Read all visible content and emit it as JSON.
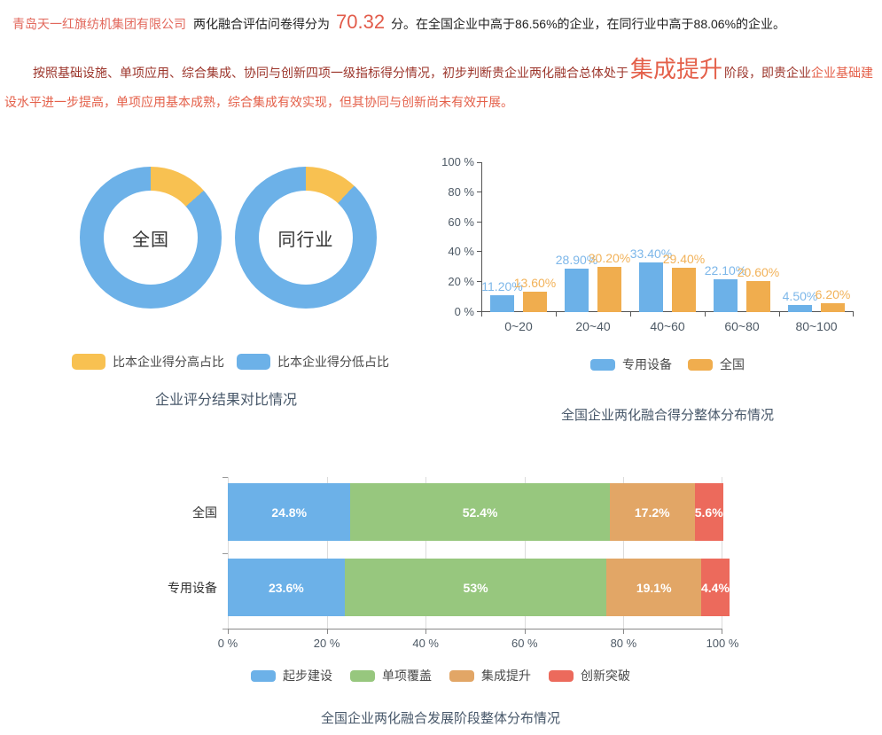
{
  "page": {
    "header": {
      "company": "青岛天一红旗纺机集团有限公司",
      "mid": "两化融合评估问卷得分为",
      "score": "70.32",
      "suffix": "分。在全国企业中高于86.56%的企业，在同行业中高于88.06%的企业。"
    },
    "analysis": {
      "part1": "按照基础设施、单项应用、综合集成、协同与创新四项一级指标得分情况，初步判断贵企业两化融合总体处于",
      "stage": "集成提升",
      "part2": "阶段，即贵企业",
      "part3": "企业基础建设水平进一步提高，单项应用基本成熟，综合集成有效实现，但其协同与创新尚未有效开展。"
    }
  },
  "colors": {
    "blue": "#6cb1e8",
    "donut_yellow": "#f8c151",
    "bar_orange": "#f0ad4e",
    "green": "#97c77e",
    "stack_orange": "#e2a666",
    "red": "#ec6a5c",
    "dark_red_text": "#9c352b",
    "salmon_text": "#e4604a",
    "title_text": "#475769",
    "axis_text": "#4e5a66"
  },
  "chart_data": [
    {
      "id": "score-compare-donuts",
      "type": "pie",
      "title": "企业评分结果对比情况",
      "donuts": [
        {
          "label": "全国",
          "higher_pct": 13.44,
          "lower_pct": 86.56
        },
        {
          "label": "同行业",
          "higher_pct": 11.94,
          "lower_pct": 88.06
        }
      ],
      "legend": [
        {
          "label": "比本企业得分高占比",
          "color": "#f8c151"
        },
        {
          "label": "比本企业得分低占比",
          "color": "#6cb1e8"
        }
      ],
      "legend_position": "bottom"
    },
    {
      "id": "score-distribution-bars",
      "type": "bar",
      "title": "全国企业两化融合得分整体分布情况",
      "categories": [
        "0~20",
        "20~40",
        "40~60",
        "60~80",
        "80~100"
      ],
      "series": [
        {
          "name": "专用设备",
          "color": "#6cb1e8",
          "label_color": "#7db7e9",
          "values": [
            11.2,
            28.9,
            33.4,
            22.1,
            4.5
          ],
          "labels": [
            "11.20%",
            "28.90%",
            "33.40%",
            "22.10%",
            "4.50%"
          ]
        },
        {
          "name": "全国",
          "color": "#f0ad4e",
          "label_color": "#f2b259",
          "values": [
            13.6,
            30.2,
            29.4,
            20.6,
            6.2
          ],
          "labels": [
            "13.60%",
            "30.20%",
            "29.40%",
            "20.60%",
            "6.20%"
          ]
        }
      ],
      "ylim": [
        0,
        100
      ],
      "yticks": [
        "0 %",
        "20 %",
        "40 %",
        "60 %",
        "80 %",
        "100 %"
      ],
      "grid": false,
      "legend_position": "bottom"
    },
    {
      "id": "stage-distribution-stacked",
      "type": "bar",
      "stacked": true,
      "horizontal": true,
      "title": "全国企业两化融合发展阶段整体分布情况",
      "categories": [
        "全国",
        "专用设备"
      ],
      "series": [
        {
          "name": "起步建设",
          "color": "#6cb1e8",
          "values": [
            24.8,
            23.6
          ],
          "labels": [
            "24.8%",
            "23.6%"
          ]
        },
        {
          "name": "单项覆盖",
          "color": "#97c77e",
          "values": [
            52.4,
            53
          ],
          "labels": [
            "52.4%",
            "53%"
          ]
        },
        {
          "name": "集成提升",
          "color": "#e2a666",
          "values": [
            17.2,
            19.1
          ],
          "labels": [
            "17.2%",
            "19.1%"
          ]
        },
        {
          "name": "创新突破",
          "color": "#ec6a5c",
          "values": [
            5.6,
            4.4
          ],
          "labels": [
            "5.6%",
            "4.4%"
          ]
        }
      ],
      "xlim": [
        0,
        100
      ],
      "xticks": [
        "0 %",
        "20 %",
        "40 %",
        "60 %",
        "80 %",
        "100 %"
      ],
      "grid": true,
      "legend_position": "bottom"
    }
  ]
}
